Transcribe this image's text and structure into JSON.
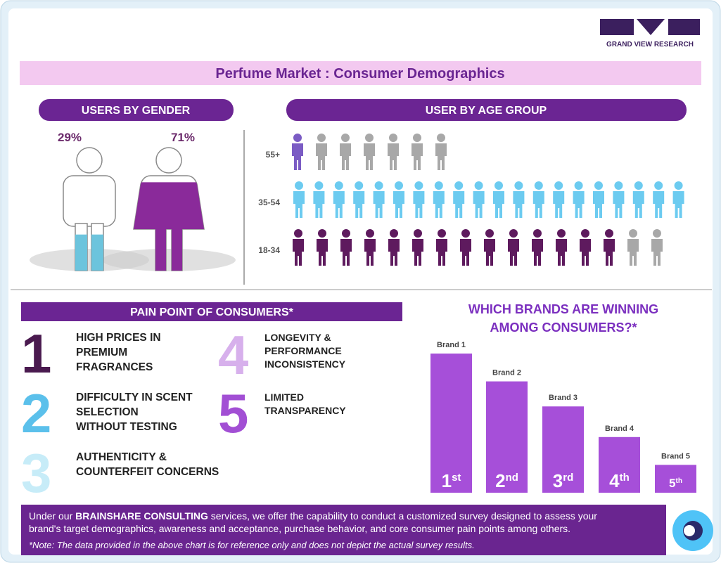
{
  "header": {
    "logo": "GRAND VIEW RESEARCH",
    "title": "Perfume Market : Consumer Demographics"
  },
  "chart_data": [
    {
      "type": "gender",
      "title": "USERS BY GENDER",
      "values": [
        29,
        71
      ],
      "value_labels": [
        "29%",
        "71%"
      ],
      "colors": [
        "#6cc4dd",
        "#8a2a9a"
      ],
      "ylim": [
        0,
        100
      ]
    },
    {
      "type": "icons",
      "title": "USER BY AGE GROUP",
      "categories": [
        "55+",
        "35-54",
        "18-34"
      ],
      "totals": [
        7,
        20,
        16
      ],
      "values": [
        1,
        20,
        14
      ],
      "colors": [
        "#7b5cc4",
        "#6ccbf0",
        "#5e1a5e"
      ],
      "rest_color": "#a8a8a8"
    },
    {
      "type": "bar",
      "title": [
        "WHICH BRANDS ARE WINNING",
        "AMONG CONSUMERS?*"
      ],
      "categories": [
        "Brand 1",
        "Brand 2",
        "Brand 3",
        "Brand 4",
        "Brand 5"
      ],
      "values": [
        100,
        80,
        62,
        40,
        20
      ],
      "ylim": [
        0,
        100
      ],
      "ranks": [
        [
          "1",
          "st"
        ],
        [
          "2",
          "nd"
        ],
        [
          "3",
          "rd"
        ],
        [
          "4",
          "th"
        ],
        [
          "5",
          "th"
        ]
      ],
      "color": "#a64fd9"
    }
  ],
  "pain_points": {
    "title": "PAIN POINT OF CONSUMERS*",
    "items": [
      {
        "number": "1",
        "color": "#4a1a4f",
        "lines": [
          "HIGH PRICES IN",
          "PREMIUM",
          "FRAGRANCES"
        ]
      },
      {
        "number": "2",
        "color": "#5bc0eb",
        "lines": [
          "DIFFICULTY IN SCENT",
          "SELECTION",
          "WITHOUT TESTING"
        ]
      },
      {
        "number": "3",
        "color": "#c7ecf8",
        "lines": [
          "AUTHENTICITY &",
          "COUNTERFEIT CONCERNS"
        ]
      },
      {
        "number": "4",
        "color": "#d7b0ec",
        "lines": [
          "LONGEVITY &",
          "PERFORMANCE",
          "INCONSISTENCY"
        ]
      },
      {
        "number": "5",
        "color": "#a24fd4",
        "lines": [
          "LIMITED",
          "TRANSPARENCY"
        ]
      }
    ]
  },
  "footer": {
    "lines": [
      [
        "Under our ",
        "BRAINSHARE CONSULTING",
        " services, we offer the capability to conduct a customized survey designed to assess your"
      ],
      [
        "brand's target demographics, awareness and acceptance, purchase behavior, and core consumer pain points among others."
      ]
    ],
    "note": "*Note: The data provided in the above chart is for reference only and does not depict the actual survey results."
  }
}
